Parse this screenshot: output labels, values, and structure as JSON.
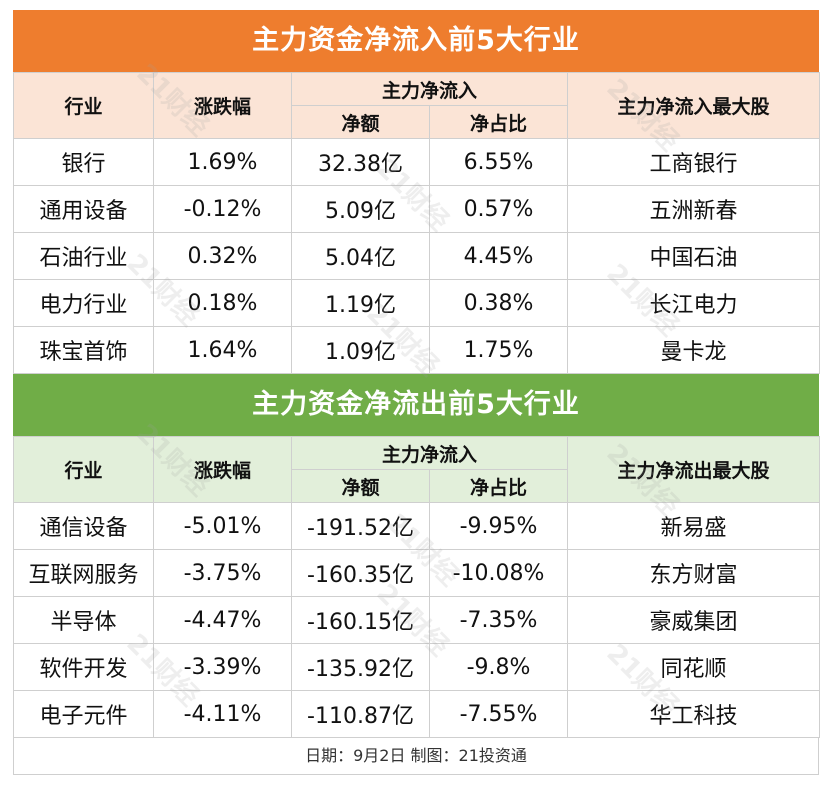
{
  "inflow": {
    "title": "主力资金净流入前5大行业",
    "headers": {
      "industry": "行业",
      "change": "涨跌幅",
      "flow_group": "主力净流入",
      "net": "净额",
      "ratio": "净占比",
      "top_stock": "主力净流入最大股"
    },
    "rows": [
      {
        "industry": "银行",
        "change": "1.69%",
        "net": "32.38亿",
        "ratio": "6.55%",
        "top_stock": "工商银行"
      },
      {
        "industry": "通用设备",
        "change": "-0.12%",
        "net": "5.09亿",
        "ratio": "0.57%",
        "top_stock": "五洲新春"
      },
      {
        "industry": "石油行业",
        "change": "0.32%",
        "net": "5.04亿",
        "ratio": "4.45%",
        "top_stock": "中国石油"
      },
      {
        "industry": "电力行业",
        "change": "0.18%",
        "net": "1.19亿",
        "ratio": "0.38%",
        "top_stock": "长江电力"
      },
      {
        "industry": "珠宝首饰",
        "change": "1.64%",
        "net": "1.09亿",
        "ratio": "1.75%",
        "top_stock": "曼卡龙"
      }
    ]
  },
  "outflow": {
    "title": "主力资金净流出前5大行业",
    "headers": {
      "industry": "行业",
      "change": "涨跌幅",
      "flow_group": "主力净流入",
      "net": "净额",
      "ratio": "净占比",
      "top_stock": "主力净流出最大股"
    },
    "rows": [
      {
        "industry": "通信设备",
        "change": "-5.01%",
        "net": "-191.52亿",
        "ratio": "-9.95%",
        "top_stock": "新易盛"
      },
      {
        "industry": "互联网服务",
        "change": "-3.75%",
        "net": "-160.35亿",
        "ratio": "-10.08%",
        "top_stock": "东方财富"
      },
      {
        "industry": "半导体",
        "change": "-4.47%",
        "net": "-160.15亿",
        "ratio": "-7.35%",
        "top_stock": "豪威集团"
      },
      {
        "industry": "软件开发",
        "change": "-3.39%",
        "net": "-135.92亿",
        "ratio": "-9.8%",
        "top_stock": "同花顺"
      },
      {
        "industry": "电子元件",
        "change": "-4.11%",
        "net": "-110.87亿",
        "ratio": "-7.55%",
        "top_stock": "华工科技"
      }
    ]
  },
  "footer": "日期：9月2日 制图：21投资通",
  "watermark": "21财经",
  "colors": {
    "inflow_banner": "#ee7d2e",
    "inflow_header": "#fbe4d6",
    "outflow_banner": "#70ad47",
    "outflow_header": "#e2efda"
  }
}
